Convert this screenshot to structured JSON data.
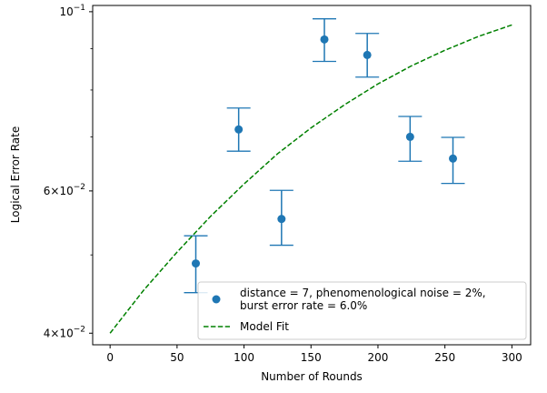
{
  "chart_data": {
    "type": "scatter",
    "xlabel": "Number of Rounds",
    "ylabel": "Logical Error Rate",
    "yscale": "log",
    "xlim": [
      -13,
      314
    ],
    "ylim": [
      0.0387,
      0.1018
    ],
    "x_ticks": [
      {
        "value": 0,
        "label": "0"
      },
      {
        "value": 50,
        "label": "50"
      },
      {
        "value": 100,
        "label": "100"
      },
      {
        "value": 150,
        "label": "150"
      },
      {
        "value": 200,
        "label": "200"
      },
      {
        "value": 250,
        "label": "250"
      },
      {
        "value": 300,
        "label": "300"
      }
    ],
    "y_major_ticks": [
      {
        "value": 0.04,
        "mantissa": "4",
        "base": "10",
        "exp": "−2"
      },
      {
        "value": 0.06,
        "mantissa": "6",
        "base": "10",
        "exp": "−2"
      },
      {
        "value": 0.1,
        "mantissa": "",
        "base": "10",
        "exp": "−1"
      }
    ],
    "y_minor_ticks": [
      0.05,
      0.07,
      0.08,
      0.09
    ],
    "grid": false,
    "legend_position": "lower-right",
    "series": [
      {
        "name": "distance = 7, phenomenological noise = 2%,\nburst error rate = 6.0%",
        "legend_lines": [
          "distance = 7, phenomenological noise = 2%,",
          "burst error rate = 6.0%"
        ],
        "kind": "errorbar",
        "color": "#1f77b4",
        "points": [
          {
            "x": 64,
            "y": 0.0488,
            "ylow": 0.0449,
            "yhigh": 0.0528
          },
          {
            "x": 96,
            "y": 0.0715,
            "ylow": 0.0672,
            "yhigh": 0.076
          },
          {
            "x": 128,
            "y": 0.0554,
            "ylow": 0.0514,
            "yhigh": 0.0601
          },
          {
            "x": 160,
            "y": 0.0924,
            "ylow": 0.0868,
            "yhigh": 0.098
          },
          {
            "x": 192,
            "y": 0.0884,
            "ylow": 0.083,
            "yhigh": 0.094
          },
          {
            "x": 224,
            "y": 0.07,
            "ylow": 0.0653,
            "yhigh": 0.0742
          },
          {
            "x": 256,
            "y": 0.0658,
            "ylow": 0.0613,
            "yhigh": 0.0699
          }
        ]
      },
      {
        "name": "Model Fit",
        "kind": "line",
        "style": "dashed",
        "color": "#008000",
        "points": [
          {
            "x": 0,
            "y": 0.04
          },
          {
            "x": 25,
            "y": 0.0452
          },
          {
            "x": 50,
            "y": 0.0504
          },
          {
            "x": 75,
            "y": 0.0558
          },
          {
            "x": 100,
            "y": 0.0612
          },
          {
            "x": 125,
            "y": 0.0667
          },
          {
            "x": 150,
            "y": 0.0718
          },
          {
            "x": 175,
            "y": 0.0767
          },
          {
            "x": 200,
            "y": 0.0814
          },
          {
            "x": 225,
            "y": 0.0857
          },
          {
            "x": 250,
            "y": 0.0896
          },
          {
            "x": 275,
            "y": 0.0932
          },
          {
            "x": 300,
            "y": 0.0963
          }
        ]
      }
    ]
  }
}
